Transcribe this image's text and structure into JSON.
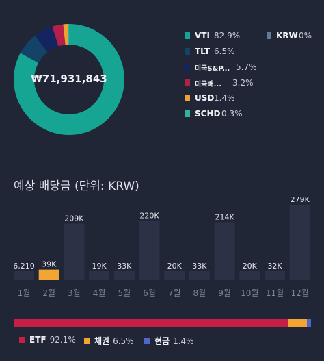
{
  "portfolio": {
    "total": "₩71,931,843",
    "holdings": [
      {
        "name": "VTI",
        "pct": "82.9%",
        "value": 82.9,
        "color": "#17a593"
      },
      {
        "name": "TLT",
        "pct": "6.5%",
        "value": 6.5,
        "color": "#134468"
      },
      {
        "name": "미국S&P...",
        "pct": "5.7%",
        "value": 5.7,
        "color": "#14245e"
      },
      {
        "name": "미국배...",
        "pct": "3.2%",
        "value": 3.2,
        "color": "#b4204a"
      },
      {
        "name": "USD",
        "pct": "1.4%",
        "value": 1.4,
        "color": "#eea234"
      },
      {
        "name": "SCHD",
        "pct": "0.3%",
        "value": 0.3,
        "color": "#2fb3a2"
      },
      {
        "name": "KRW",
        "pct": "0%",
        "value": 0,
        "color": "#5e7c96"
      }
    ]
  },
  "dividends": {
    "title": "예상 배당금 (단위: KRW)",
    "chart_data": {
      "type": "bar",
      "categories": [
        "1월",
        "2월",
        "3월",
        "4월",
        "5월",
        "6월",
        "7월",
        "8월",
        "9월",
        "10월",
        "11월",
        "12월"
      ],
      "values": [
        6210,
        39000,
        209000,
        19000,
        33000,
        220000,
        20000,
        33000,
        214000,
        20000,
        32000,
        279000
      ],
      "labels": [
        "6,210",
        "39K",
        "209K",
        "19K",
        "33K",
        "220K",
        "20K",
        "33K",
        "214K",
        "20K",
        "32K",
        "279K"
      ],
      "highlight_index": 1,
      "bar_color": "#2c3245",
      "highlight_color": "#f2a532",
      "ylim": [
        0,
        279000
      ]
    }
  },
  "allocation": {
    "segments": [
      {
        "name": "ETF",
        "pct": "92.1%",
        "value": 92.1,
        "color": "#c41f45"
      },
      {
        "name": "채권",
        "pct": "6.5%",
        "value": 6.5,
        "color": "#f2a532"
      },
      {
        "name": "현금",
        "pct": "1.4%",
        "value": 1.4,
        "color": "#4f67c8"
      }
    ]
  }
}
